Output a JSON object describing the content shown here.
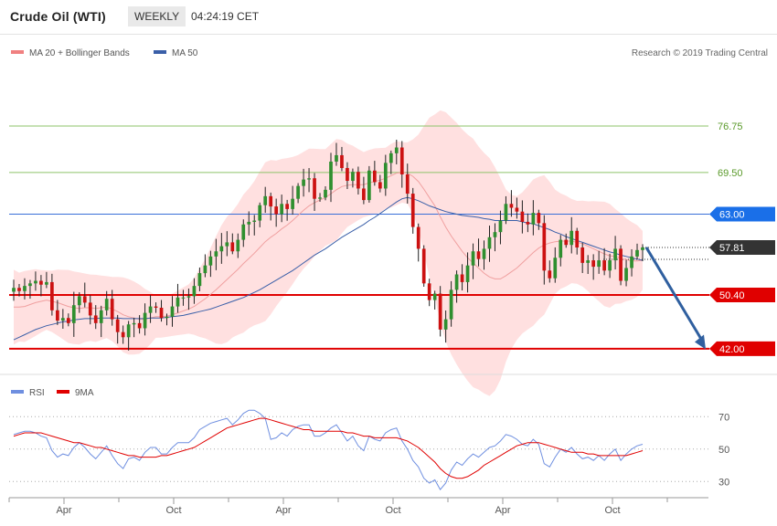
{
  "header": {
    "title": "Crude Oil (WTI)",
    "period": "WEEKLY",
    "time": "04:24:19 CET"
  },
  "legend": {
    "ma20": "MA 20 + Bollinger Bands",
    "ma50": "MA 50",
    "rsi": "RSI",
    "ma9": "9MA"
  },
  "credit": "Research © 2019 Trading Central",
  "colors": {
    "up": "#2f8f2f",
    "down": "#cc1111",
    "band": "#ffe0e0",
    "ma20": "#f0a0a0",
    "ma50": "#3a5fa8",
    "green_level": "#8dc36a",
    "red_level": "#e00000",
    "blue_level": "#3a6fd8",
    "arrow": "#2f5f9f",
    "rsi": "#6f8fe0",
    "rsi_ma": "#e00000"
  },
  "chart_data": [
    {
      "type": "candlestick",
      "title": "Crude Oil (WTI)",
      "ylim": [
        38,
        90
      ],
      "x_tick_labels": [
        "Apr",
        "Oct",
        "Apr",
        "Oct",
        "Apr",
        "Oct"
      ],
      "levels": [
        {
          "value": 76.75,
          "label": "76.75",
          "style": "green"
        },
        {
          "value": 69.5,
          "label": "69.50",
          "style": "green"
        },
        {
          "value": 63.0,
          "label": "63.00",
          "style": "blue"
        },
        {
          "value": 57.81,
          "label": "57.81",
          "style": "last"
        },
        {
          "value": 50.4,
          "label": "50.40",
          "style": "red"
        },
        {
          "value": 42.0,
          "label": "42.00",
          "style": "red"
        }
      ],
      "closes": [
        51.5,
        51.0,
        51.8,
        52.2,
        52.6,
        52.0,
        52.4,
        48.0,
        46.4,
        46.8,
        46.0,
        48.8,
        50.2,
        49.2,
        47.2,
        46.0,
        48.0,
        49.8,
        46.6,
        44.6,
        43.8,
        45.8,
        46.0,
        45.2,
        47.6,
        48.6,
        48.4,
        46.8,
        47.0,
        48.6,
        50.0,
        50.0,
        50.2,
        51.8,
        53.8,
        55.0,
        56.4,
        57.2,
        58.0,
        58.6,
        57.2,
        59.0,
        61.4,
        61.8,
        62.0,
        64.4,
        65.8,
        64.2,
        63.0,
        64.6,
        63.8,
        65.4,
        67.4,
        68.4,
        68.6,
        65.4,
        65.6,
        66.8,
        71.2,
        72.2,
        70.2,
        68.2,
        69.6,
        67.0,
        65.2,
        69.8,
        68.0,
        67.0,
        71.0,
        72.5,
        73.4,
        69.2,
        66.2,
        61.0,
        57.6,
        52.2,
        49.6,
        50.6,
        45.0,
        46.6,
        51.2,
        53.6,
        52.4,
        55.0,
        57.2,
        56.0,
        57.6,
        59.4,
        60.2,
        62.0,
        64.6,
        64.0,
        63.4,
        61.8,
        61.4,
        63.2,
        61.6,
        54.2,
        53.0,
        56.2,
        59.0,
        58.2,
        60.4,
        57.8,
        55.4,
        55.8,
        54.8,
        55.8,
        54.2,
        55.8,
        57.6,
        52.6,
        54.6,
        56.4,
        57.4,
        57.81
      ],
      "ma20": [
        48.5,
        48.5,
        48.6,
        48.9,
        49.2,
        49.4,
        49.6,
        49.4,
        49.2,
        48.9,
        48.6,
        48.4,
        48.3,
        48.4,
        48.4,
        48.3,
        48.4,
        48.5,
        48.2,
        47.8,
        47.3,
        47.0,
        46.8,
        46.6,
        46.6,
        46.8,
        47.0,
        47.0,
        47.1,
        47.3,
        47.6,
        47.9,
        48.2,
        48.6,
        49.2,
        49.8,
        50.5,
        51.2,
        52.0,
        52.8,
        53.6,
        54.4,
        55.3,
        56.1,
        56.9,
        57.8,
        58.7,
        59.4,
        60.0,
        60.7,
        61.3,
        62.0,
        62.8,
        63.6,
        64.3,
        64.8,
        65.2,
        65.6,
        66.2,
        66.8,
        67.3,
        67.5,
        67.6,
        67.6,
        67.6,
        67.9,
        68.1,
        68.3,
        68.6,
        69.0,
        69.4,
        69.5,
        69.4,
        68.9,
        68.1,
        66.9,
        65.6,
        64.3,
        62.6,
        61.0,
        59.6,
        58.4,
        57.2,
        56.2,
        55.4,
        54.6,
        53.8,
        53.2,
        52.9,
        52.9,
        53.4,
        54.0,
        54.6,
        55.4,
        56.2,
        57.0,
        57.7,
        58.2,
        58.5,
        58.7,
        58.8,
        58.8,
        58.8,
        58.6,
        58.4,
        58.0,
        57.6,
        57.2,
        56.8,
        56.5,
        56.4,
        56.1,
        55.9,
        55.7,
        55.7,
        55.8
      ],
      "ma50": [
        43.4,
        43.8,
        44.2,
        44.6,
        45.0,
        45.3,
        45.6,
        45.8,
        46.0,
        46.2,
        46.3,
        46.5,
        46.6,
        46.7,
        46.7,
        46.7,
        46.8,
        46.8,
        46.8,
        46.8,
        46.7,
        46.7,
        46.7,
        46.7,
        46.7,
        46.8,
        46.8,
        46.8,
        46.9,
        47.0,
        47.1,
        47.2,
        47.4,
        47.6,
        47.8,
        48.0,
        48.2,
        48.5,
        48.8,
        49.1,
        49.4,
        49.7,
        50.0,
        50.4,
        50.8,
        51.2,
        51.7,
        52.2,
        52.7,
        53.2,
        53.7,
        54.2,
        54.8,
        55.4,
        56.0,
        56.6,
        57.1,
        57.6,
        58.2,
        58.8,
        59.4,
        59.9,
        60.4,
        60.9,
        61.4,
        62.0,
        62.5,
        63.1,
        63.7,
        64.3,
        64.9,
        65.4,
        65.6,
        65.4,
        65.1,
        64.7,
        64.3,
        64.0,
        63.7,
        63.4,
        63.2,
        63.0,
        62.8,
        62.7,
        62.6,
        62.5,
        62.3,
        62.2,
        62.0,
        62.0,
        62.0,
        62.0,
        62.0,
        61.8,
        61.6,
        61.5,
        61.2,
        60.9,
        60.6,
        60.2,
        59.9,
        59.5,
        59.2,
        58.9,
        58.6,
        58.3,
        58.0,
        57.7,
        57.4,
        57.1,
        56.9,
        56.6,
        56.4,
        56.2,
        56.0,
        55.8
      ]
    },
    {
      "type": "line",
      "title": "RSI",
      "ylim": [
        20,
        82
      ],
      "y_tick_labels": [
        "70",
        "50",
        "30"
      ],
      "series": [
        {
          "name": "RSI",
          "values": [
            59,
            60,
            61,
            61,
            60,
            58,
            57,
            49,
            45,
            47,
            46,
            51,
            54,
            51,
            47,
            44,
            48,
            52,
            46,
            41,
            38,
            44,
            45,
            43,
            48,
            51,
            51,
            47,
            47,
            51,
            54,
            54,
            54,
            57,
            62,
            64,
            66,
            67,
            68,
            69,
            65,
            68,
            72,
            74,
            74,
            72,
            69,
            56,
            57,
            60,
            58,
            62,
            64,
            65,
            65,
            58,
            58,
            60,
            63,
            65,
            60,
            55,
            58,
            52,
            49,
            58,
            56,
            55,
            60,
            62,
            63,
            55,
            50,
            43,
            39,
            32,
            29,
            31,
            25,
            29,
            37,
            42,
            40,
            44,
            47,
            45,
            48,
            51,
            52,
            55,
            59,
            58,
            56,
            53,
            52,
            56,
            53,
            41,
            39,
            45,
            50,
            48,
            51,
            47,
            44,
            45,
            43,
            46,
            43,
            47,
            50,
            43,
            47,
            50,
            52,
            53
          ]
        },
        {
          "name": "9MA",
          "values": [
            58,
            59,
            60,
            60,
            60,
            60,
            59,
            58,
            57,
            56,
            55,
            54,
            54,
            53,
            52,
            51,
            51,
            50,
            49,
            48,
            47,
            46,
            46,
            45,
            45,
            45,
            45,
            46,
            46,
            47,
            48,
            49,
            50,
            51,
            53,
            55,
            57,
            59,
            61,
            63,
            64,
            65,
            66,
            67,
            68,
            69,
            69,
            68,
            67,
            66,
            65,
            64,
            63,
            62,
            62,
            61,
            61,
            61,
            61,
            61,
            61,
            60,
            60,
            59,
            58,
            58,
            57,
            57,
            57,
            57,
            57,
            56,
            55,
            53,
            51,
            48,
            45,
            42,
            38,
            35,
            33,
            32,
            32,
            33,
            35,
            37,
            40,
            42,
            44,
            46,
            48,
            50,
            52,
            53,
            54,
            54,
            54,
            53,
            52,
            51,
            50,
            49,
            48,
            48,
            48,
            47,
            47,
            46,
            46,
            46,
            46,
            46,
            46,
            47,
            48,
            49
          ]
        }
      ]
    }
  ]
}
